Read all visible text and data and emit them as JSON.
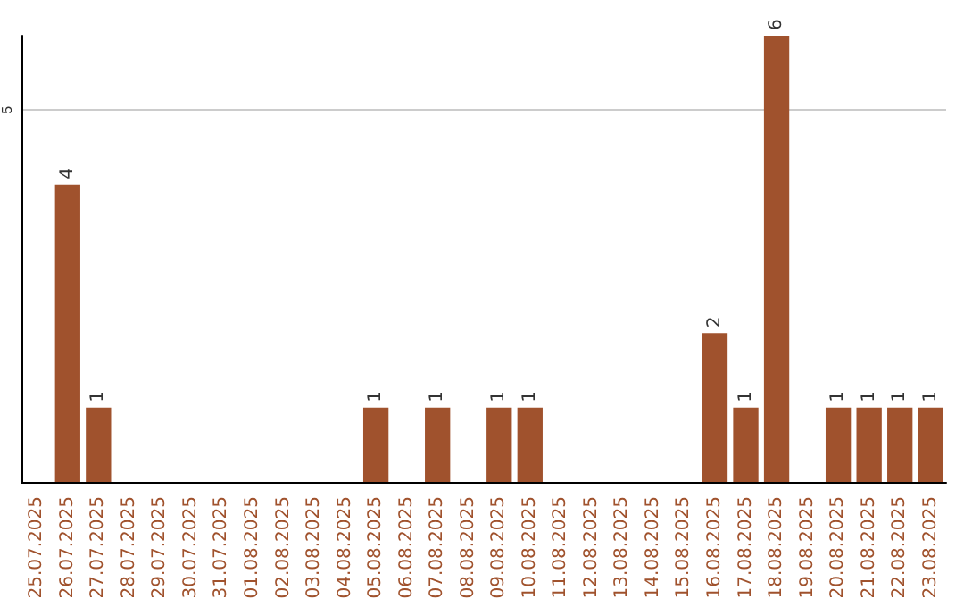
{
  "chart_data": {
    "type": "bar",
    "categories": [
      "25.07.2025",
      "26.07.2025",
      "27.07.2025",
      "28.07.2025",
      "29.07.2025",
      "30.07.2025",
      "31.07.2025",
      "01.08.2025",
      "02.08.2025",
      "03.08.2025",
      "04.08.2025",
      "05.08.2025",
      "06.08.2025",
      "07.08.2025",
      "08.08.2025",
      "09.08.2025",
      "10.08.2025",
      "11.08.2025",
      "12.08.2025",
      "13.08.2025",
      "14.08.2025",
      "15.08.2025",
      "16.08.2025",
      "17.08.2025",
      "18.08.2025",
      "19.08.2025",
      "20.08.2025",
      "21.08.2025",
      "22.08.2025",
      "23.08.2025"
    ],
    "values": [
      0,
      4,
      1,
      0,
      0,
      0,
      0,
      0,
      0,
      0,
      0,
      1,
      0,
      1,
      0,
      1,
      1,
      0,
      0,
      0,
      0,
      0,
      2,
      1,
      6,
      0,
      1,
      1,
      1,
      1
    ],
    "value_labels": [
      null,
      "4",
      "1",
      null,
      null,
      null,
      null,
      null,
      null,
      null,
      null,
      "1",
      null,
      "1",
      null,
      "1",
      "1",
      null,
      null,
      null,
      null,
      null,
      "2",
      "1",
      "6",
      null,
      "1",
      "1",
      "1",
      "1"
    ],
    "color": "#a0522d",
    "ylim": [
      0,
      6
    ],
    "yticks": [
      5
    ],
    "grid": "y"
  }
}
